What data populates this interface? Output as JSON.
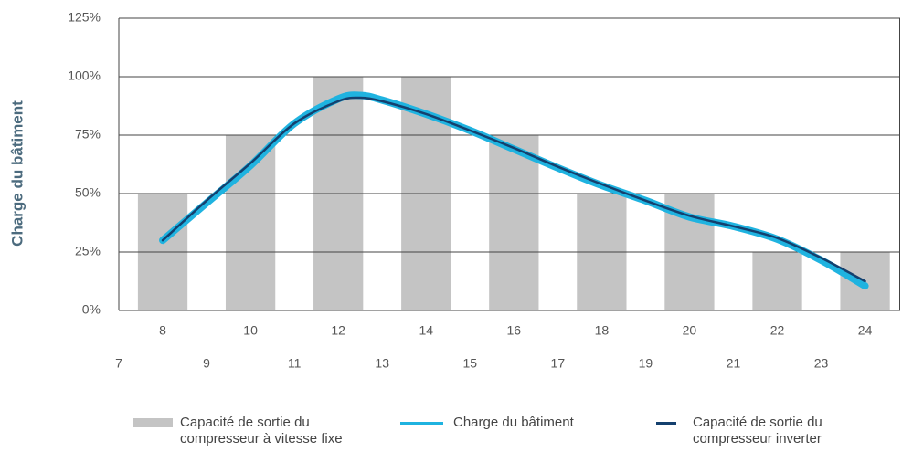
{
  "chart_data": {
    "type": "combo",
    "ylabel": "Charge du bâtiment",
    "xlim": [
      7,
      24.8
    ],
    "ylim": [
      0,
      125
    ],
    "xticks": [
      7,
      8,
      9,
      10,
      11,
      12,
      13,
      14,
      15,
      16,
      17,
      18,
      19,
      20,
      21,
      22,
      23,
      24
    ],
    "yticks": [
      {
        "value": 0,
        "label": "0%"
      },
      {
        "value": 25,
        "label": "25%"
      },
      {
        "value": 50,
        "label": "50%"
      },
      {
        "value": 75,
        "label": "75%"
      },
      {
        "value": 100,
        "label": "100%"
      },
      {
        "value": 125,
        "label": "125%"
      }
    ],
    "grid": true,
    "series": [
      {
        "type": "bar",
        "name": "Capacité de sortie du compresseur à vitesse fixe",
        "color": "#c4c4c4",
        "x": [
          8,
          10,
          12,
          14,
          16,
          18,
          20,
          22,
          24
        ],
        "values": [
          50,
          75,
          100,
          100,
          75,
          50,
          50,
          25,
          25
        ]
      },
      {
        "type": "line",
        "name": "Charge du bâtiment",
        "color": "#1fb3e0",
        "x": [
          8,
          9,
          10,
          11,
          12,
          12.5,
          13,
          14,
          15,
          16,
          17,
          18,
          19,
          20,
          21,
          22,
          23,
          24
        ],
        "values": [
          30,
          46,
          62,
          80,
          90.5,
          92,
          90,
          84,
          77,
          69,
          61,
          53.5,
          47,
          40,
          36,
          30.5,
          21.5,
          10.5
        ]
      },
      {
        "type": "line",
        "name": "Capacité de sortie du compresseur inverter",
        "color": "#14406e",
        "x": [
          8,
          9,
          10,
          11,
          12,
          12.5,
          13,
          14,
          15,
          16,
          17,
          18,
          19,
          20,
          21,
          22,
          23,
          24
        ],
        "values": [
          30,
          47,
          63,
          80,
          89.5,
          91,
          89.5,
          84,
          77,
          69.5,
          61.5,
          54,
          47,
          40.5,
          36,
          31,
          22.5,
          12.5
        ]
      }
    ]
  }
}
